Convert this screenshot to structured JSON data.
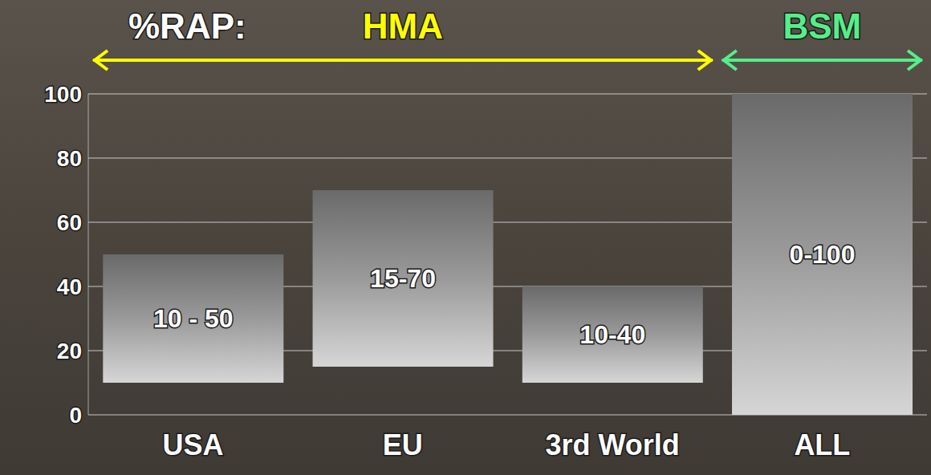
{
  "chart_data": {
    "type": "bar",
    "title": "%RAP:",
    "categories": [
      "USA",
      "EU",
      "3rd World",
      "ALL"
    ],
    "values": [
      [
        10,
        50
      ],
      [
        15,
        70
      ],
      [
        10,
        40
      ],
      [
        0,
        100
      ]
    ],
    "value_labels": [
      "10 - 50",
      "15-70",
      "10-40",
      "0-100"
    ],
    "color": "#9a9a9a",
    "ylim": [
      0,
      100
    ],
    "yticks": [
      0,
      20,
      40,
      60,
      80,
      100
    ],
    "grid": true,
    "data_labels": true,
    "annotations": [
      {
        "text": "HMA",
        "from": "USA",
        "to": "3rd World",
        "color": "#ffff00"
      },
      {
        "text": "BSM",
        "from": "ALL",
        "to": "ALL",
        "color": "#55ee88"
      }
    ]
  }
}
